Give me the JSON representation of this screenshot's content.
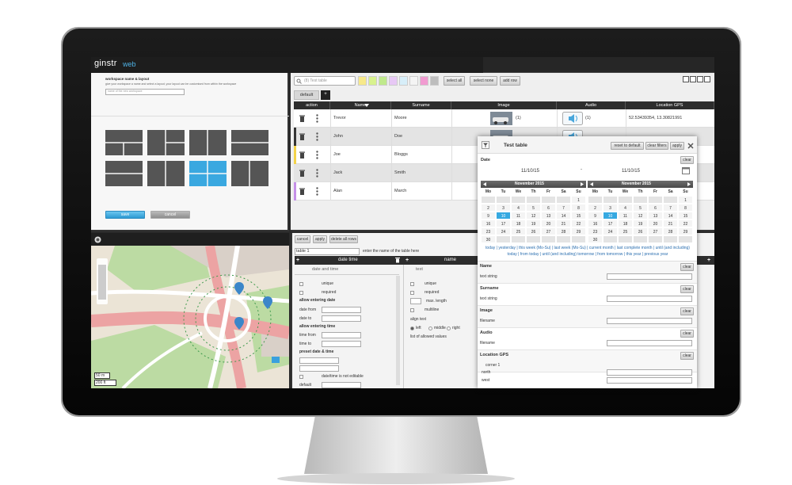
{
  "app": {
    "logo": "ginstr",
    "logo_suffix": "web"
  },
  "workspace": {
    "title": "workspace name & layout",
    "hint": "give your workspace a name and select a layout, your layout can be customised from within the workspace",
    "placeholder": "name of the new workspace",
    "buttons": [
      "save",
      "cancel"
    ]
  },
  "table": {
    "search": "(8) Test table",
    "buttons": [
      "select all",
      "select none",
      "add row"
    ],
    "tab": "default",
    "add_tab": "+",
    "columns": [
      "action",
      "Name",
      "Surname",
      "Image",
      "Audio",
      "Location GPS"
    ],
    "rows": [
      [
        "Trevor",
        "Moore",
        "(1)",
        "(1)",
        "52.53439354, 13.30821991"
      ],
      [
        "John",
        "Doe"
      ],
      [
        "Joe",
        "Bloggs"
      ],
      [
        "Jack",
        "Smith"
      ],
      [
        "Alan",
        "March"
      ]
    ]
  },
  "map": {
    "scale": [
      "50 m",
      "200 ft"
    ]
  },
  "form": {
    "buttons": [
      "cancel",
      "apply",
      "delete all rows"
    ],
    "table_name": "table 1",
    "table_hint": "enter the name of the table here",
    "add": "+",
    "columns": [
      {
        "header": "date time",
        "type": "date and time",
        "options": [
          "unique",
          "required",
          "allow entering date",
          "date from",
          "date to",
          "allow entering time",
          "time from",
          "time to",
          "preset date & time",
          "date/time is not editable",
          "default"
        ]
      },
      {
        "header": "name",
        "type": "text",
        "options": [
          "unique",
          "required",
          "max. length",
          "multiline",
          "align text",
          "left",
          "middle",
          "right",
          "list of allowed values"
        ]
      }
    ]
  },
  "filter": {
    "title": "Test table",
    "buttons": [
      "reset to default",
      "clear filters",
      "apply"
    ],
    "clear": "clear",
    "date": {
      "label": "Date",
      "from": "11/10/15",
      "separator": "-",
      "to": "11/10/15",
      "month": "November 2015",
      "weekdays": [
        "Mo",
        "Tu",
        "We",
        "Th",
        "Fr",
        "Sa",
        "Su"
      ],
      "weeks": [
        [
          null,
          null,
          null,
          null,
          null,
          null,
          1
        ],
        [
          2,
          3,
          4,
          5,
          6,
          7,
          8
        ],
        [
          9,
          10,
          11,
          12,
          13,
          14,
          15
        ],
        [
          16,
          17,
          18,
          19,
          20,
          21,
          22
        ],
        [
          23,
          24,
          25,
          26,
          27,
          28,
          29
        ],
        [
          30,
          null,
          null,
          null,
          null,
          null,
          null
        ]
      ],
      "selected_day": 10,
      "quick_ranges": "today | yesterday | this week (Mo-Su) | last week (Mo-Su) | current month | last complete month | until (and including) today | from today | until (and including) tomorrow | from tomorrow | this year | previous year"
    },
    "fields": [
      {
        "label": "Name",
        "hint": "text string"
      },
      {
        "label": "Surname",
        "hint": "text string"
      },
      {
        "label": "Image",
        "hint": "filename"
      },
      {
        "label": "Audio",
        "hint": "filename"
      },
      {
        "label": "Location GPS",
        "hint": "corner 1",
        "parts": [
          "north",
          "west"
        ]
      }
    ]
  }
}
